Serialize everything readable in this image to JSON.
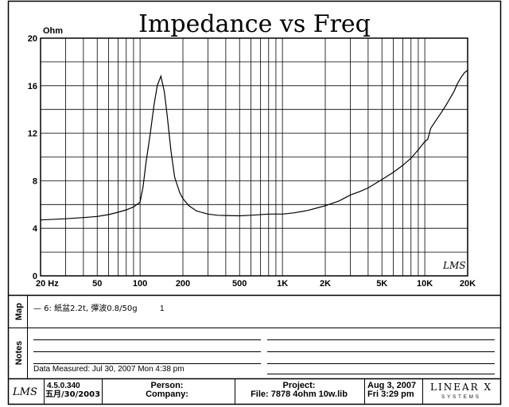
{
  "chart_data": {
    "type": "line",
    "title": "Impedance vs Freq",
    "ylabel": "Ohm",
    "xlabel": "",
    "x_scale": "log",
    "xlim": [
      20,
      20000
    ],
    "ylim": [
      0,
      20
    ],
    "x_ticks": [
      20,
      50,
      100,
      200,
      500,
      1000,
      2000,
      5000,
      10000,
      20000
    ],
    "x_tick_labels": [
      "20 Hz",
      "50",
      "100",
      "200",
      "500",
      "1K",
      "2K",
      "5K",
      "10K",
      "20K"
    ],
    "y_ticks": [
      0,
      4,
      8,
      12,
      16,
      20
    ],
    "y_tick_labels": [
      "0",
      "4",
      "8",
      "12",
      "16",
      "20"
    ],
    "grid": true,
    "series": [
      {
        "x": [
          20,
          30,
          40,
          50,
          60,
          70,
          80,
          90,
          100,
          105,
          110,
          118,
          125,
          132,
          140,
          148,
          155,
          165,
          175,
          190,
          200,
          220,
          250,
          300,
          350,
          400,
          500,
          600,
          800,
          1000,
          1200,
          1500,
          1800,
          2000,
          2500,
          3000,
          3500,
          4000,
          5000,
          6000,
          7000,
          8000,
          9000,
          10000,
          10500,
          11000,
          12000,
          13000,
          14000,
          15000,
          16000,
          17000,
          18000,
          19000,
          20000
        ],
        "y": [
          4.7,
          4.8,
          4.9,
          5.0,
          5.15,
          5.35,
          5.55,
          5.8,
          6.2,
          7.5,
          9.5,
          12.0,
          14.3,
          16.0,
          16.8,
          15.5,
          13.5,
          10.5,
          8.3,
          7.0,
          6.5,
          5.9,
          5.45,
          5.2,
          5.1,
          5.08,
          5.05,
          5.1,
          5.2,
          5.2,
          5.3,
          5.5,
          5.75,
          5.9,
          6.3,
          6.8,
          7.1,
          7.4,
          8.1,
          8.7,
          9.3,
          9.9,
          10.6,
          11.3,
          11.5,
          12.4,
          13.1,
          13.7,
          14.3,
          14.9,
          15.5,
          16.2,
          16.7,
          17.1,
          17.3
        ]
      }
    ],
    "annotations": [
      "LMS"
    ]
  },
  "panel": {
    "map_label": "Map",
    "map_entry": "— 6: 紙盆2.2t, 彈波0.8/50g",
    "map_entry_value": "1",
    "notes_label": "Notes",
    "data_measured": "Data Measured: Jul 30, 2007  Mon  4:38 pm"
  },
  "footer": {
    "logo": "LMS",
    "version": "4.5.0.340",
    "version_date": "五月/30/2003",
    "person_label": "Person:",
    "company_label": "Company:",
    "project_label": "Project:",
    "file_label": "File: 7878   4ohm 10w.lib",
    "date": "Aug  3, 2007",
    "time": "Fri  3:29 pm",
    "brand": "LINEAR X",
    "brand_sub": "SYSTEMS"
  }
}
